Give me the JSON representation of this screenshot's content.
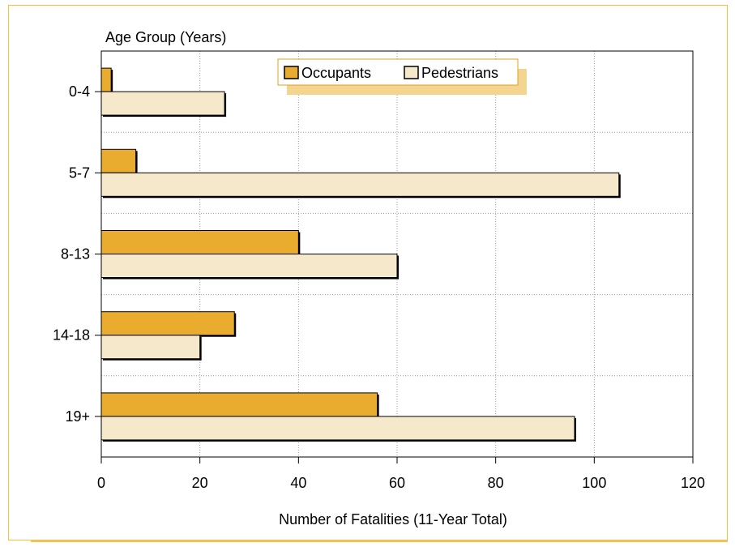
{
  "chart_data": {
    "type": "bar",
    "orientation": "horizontal",
    "categories": [
      "0-4",
      "5-7",
      "8-13",
      "14-18",
      "19+"
    ],
    "series": [
      {
        "name": "Occupants",
        "values": [
          2,
          7,
          40,
          27,
          56
        ],
        "color": "#eaac2e"
      },
      {
        "name": "Pedestrians",
        "values": [
          25,
          105,
          60,
          20,
          96
        ],
        "color": "#f5e8cb"
      }
    ],
    "title": "",
    "xlabel": "Number of Fatalities (11-Year Total)",
    "ylabel": "Age Group (Years)",
    "xlim": [
      0,
      120
    ],
    "xticks": [
      "0",
      "20",
      "40",
      "60",
      "80",
      "100",
      "120"
    ],
    "grid": true,
    "legend_position": "top-center",
    "colors": {
      "frame": "#f0c040",
      "legend_border": "#e0a020",
      "legend_shadow": "#f3d590",
      "grid": "#999999"
    }
  }
}
